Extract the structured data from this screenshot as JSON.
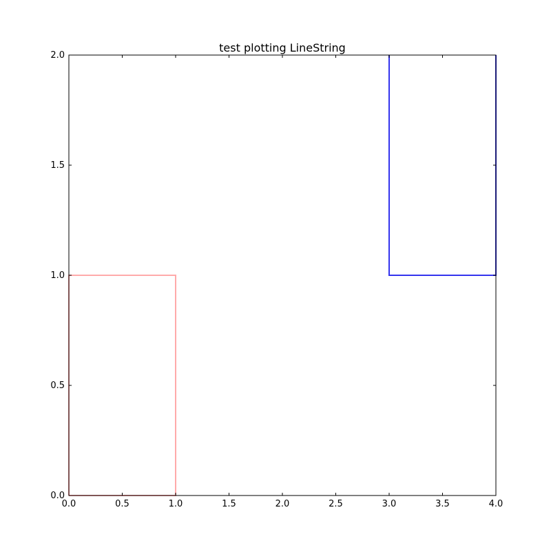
{
  "chart_data": {
    "type": "line",
    "title": "test plotting LineString",
    "xlabel": "",
    "ylabel": "",
    "xlim": [
      0,
      4
    ],
    "ylim": [
      0,
      2
    ],
    "xticks": [
      0.0,
      0.5,
      1.0,
      1.5,
      2.0,
      2.5,
      3.0,
      3.5,
      4.0
    ],
    "xtick_labels": [
      "0.0",
      "0.5",
      "1.0",
      "1.5",
      "2.0",
      "2.5",
      "3.0",
      "3.5",
      "4.0"
    ],
    "yticks": [
      0.0,
      0.5,
      1.0,
      1.5,
      2.0
    ],
    "ytick_labels": [
      "0.0",
      "0.5",
      "1.0",
      "1.5",
      "2.0"
    ],
    "grid": false,
    "legend": "none",
    "series": [
      {
        "color": "#ffaaaa",
        "x": [
          0,
          1,
          1,
          0,
          0
        ],
        "y": [
          0,
          0,
          1,
          1,
          0
        ]
      },
      {
        "color": "#3333ee",
        "x": [
          3,
          3,
          4,
          4,
          4
        ],
        "y": [
          2,
          1,
          1,
          2,
          2
        ]
      }
    ]
  }
}
